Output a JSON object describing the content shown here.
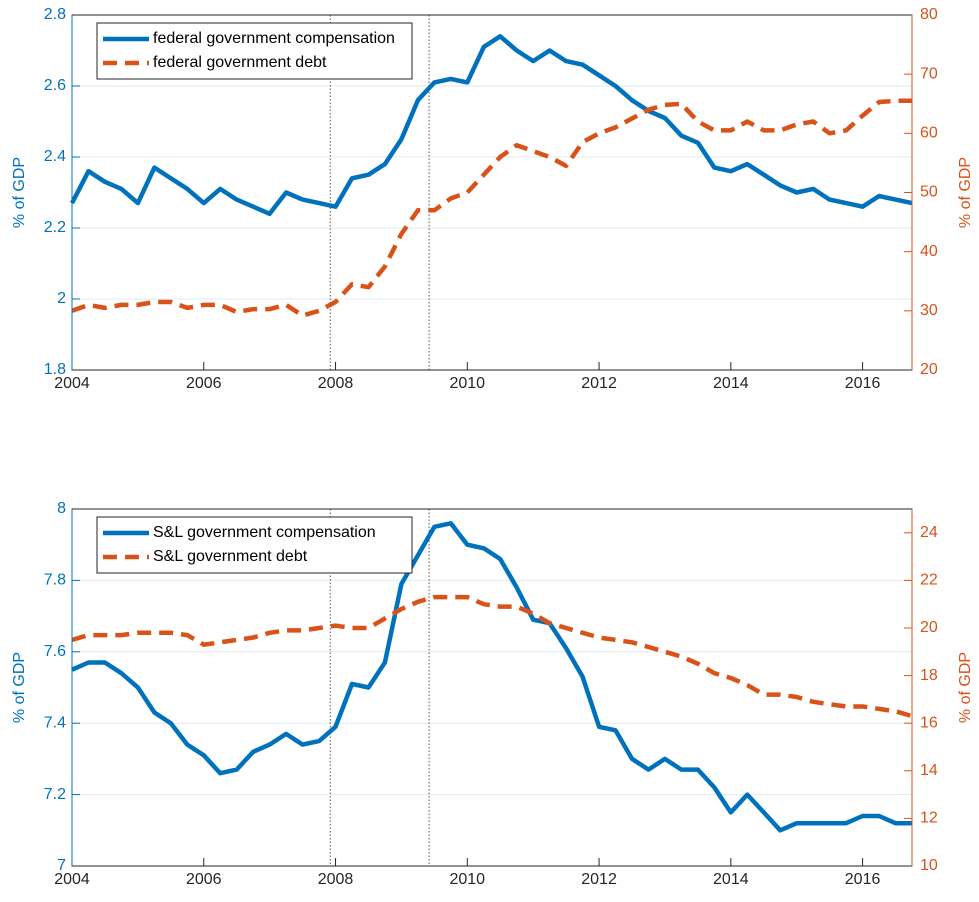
{
  "chart_data": [
    {
      "type": "line",
      "ylabel": "% of GDP",
      "y2label": "% of GDP",
      "x": [
        2004,
        2004.25,
        2004.5,
        2004.75,
        2005,
        2005.25,
        2005.5,
        2005.75,
        2006,
        2006.25,
        2006.5,
        2006.75,
        2007,
        2007.25,
        2007.5,
        2007.75,
        2008,
        2008.25,
        2008.5,
        2008.75,
        2009,
        2009.25,
        2009.5,
        2009.75,
        2010,
        2010.25,
        2010.5,
        2010.75,
        2011,
        2011.25,
        2011.5,
        2011.75,
        2012,
        2012.25,
        2012.5,
        2012.75,
        2013,
        2013.25,
        2013.5,
        2013.75,
        2014,
        2014.25,
        2014.5,
        2014.75,
        2015,
        2015.25,
        2015.5,
        2015.75,
        2016,
        2016.25,
        2016.5,
        2016.75
      ],
      "xlim": [
        2004,
        2016.75
      ],
      "xticks": [
        2004,
        2006,
        2008,
        2010,
        2012,
        2014,
        2016
      ],
      "ylim": [
        1.8,
        2.8
      ],
      "yticks": [
        1.8,
        2,
        2.2,
        2.4,
        2.6,
        2.8
      ],
      "y2lim": [
        20,
        80
      ],
      "y2ticks": [
        20,
        30,
        40,
        50,
        60,
        70,
        80
      ],
      "grid": true,
      "legend": "upper left",
      "vlines": [
        2007.92,
        2009.42
      ],
      "series": [
        {
          "name": "federal government compensation",
          "color": "#0072bd",
          "line_style": "solid",
          "values": [
            2.27,
            2.36,
            2.33,
            2.31,
            2.27,
            2.37,
            2.34,
            2.31,
            2.27,
            2.31,
            2.28,
            2.26,
            2.24,
            2.3,
            2.28,
            2.27,
            2.26,
            2.34,
            2.35,
            2.38,
            2.45,
            2.56,
            2.61,
            2.62,
            2.61,
            2.71,
            2.74,
            2.7,
            2.67,
            2.7,
            2.67,
            2.66,
            2.63,
            2.6,
            2.56,
            2.53,
            2.51,
            2.46,
            2.44,
            2.37,
            2.36,
            2.38,
            2.35,
            2.32,
            2.3,
            2.31,
            2.28,
            2.27,
            2.26,
            2.29,
            2.28,
            2.27
          ]
        },
        {
          "name": "federal government debt",
          "color": "#d95319",
          "line_style": "dashed",
          "axis": "y2",
          "values": [
            30,
            31,
            30.5,
            31,
            31,
            31.5,
            31.5,
            30.5,
            31,
            31,
            29.8,
            30.3,
            30.3,
            31,
            29.2,
            30,
            31.5,
            34.5,
            34,
            37.5,
            43,
            47,
            47,
            49,
            50,
            53,
            56,
            58,
            57,
            56,
            54.5,
            58.5,
            60,
            61,
            62.5,
            64,
            64.8,
            65,
            62,
            60.5,
            60.5,
            62,
            60.5,
            60.5,
            61.5,
            62,
            60,
            60.5,
            63,
            65.3,
            65.5,
            65.5
          ]
        }
      ]
    },
    {
      "type": "line",
      "ylabel": "% of GDP",
      "y2label": "% of GDP",
      "x": [
        2004,
        2004.25,
        2004.5,
        2004.75,
        2005,
        2005.25,
        2005.5,
        2005.75,
        2006,
        2006.25,
        2006.5,
        2006.75,
        2007,
        2007.25,
        2007.5,
        2007.75,
        2008,
        2008.25,
        2008.5,
        2008.75,
        2009,
        2009.25,
        2009.5,
        2009.75,
        2010,
        2010.25,
        2010.5,
        2010.75,
        2011,
        2011.25,
        2011.5,
        2011.75,
        2012,
        2012.25,
        2012.5,
        2012.75,
        2013,
        2013.25,
        2013.5,
        2013.75,
        2014,
        2014.25,
        2014.5,
        2014.75,
        2015,
        2015.25,
        2015.5,
        2015.75,
        2016,
        2016.25,
        2016.5,
        2016.75
      ],
      "xlim": [
        2004,
        2016.75
      ],
      "xticks": [
        2004,
        2006,
        2008,
        2010,
        2012,
        2014,
        2016
      ],
      "ylim": [
        7,
        8
      ],
      "yticks": [
        7,
        7.2,
        7.4,
        7.6,
        7.8,
        8
      ],
      "y2lim": [
        10,
        25
      ],
      "y2ticks": [
        10,
        12,
        14,
        16,
        18,
        20,
        22,
        24
      ],
      "grid": true,
      "legend": "upper left",
      "vlines": [
        2007.92,
        2009.42
      ],
      "series": [
        {
          "name": "S&L government compensation",
          "color": "#0072bd",
          "line_style": "solid",
          "values": [
            7.55,
            7.57,
            7.57,
            7.54,
            7.5,
            7.43,
            7.4,
            7.34,
            7.31,
            7.26,
            7.27,
            7.32,
            7.34,
            7.37,
            7.34,
            7.35,
            7.39,
            7.51,
            7.5,
            7.57,
            7.79,
            7.87,
            7.95,
            7.96,
            7.9,
            7.89,
            7.86,
            7.78,
            7.69,
            7.68,
            7.61,
            7.53,
            7.39,
            7.38,
            7.3,
            7.27,
            7.3,
            7.27,
            7.27,
            7.22,
            7.15,
            7.2,
            7.15,
            7.1,
            7.12,
            7.12,
            7.12,
            7.12,
            7.14,
            7.14,
            7.12,
            7.12
          ]
        },
        {
          "name": "S&L government debt",
          "color": "#d95319",
          "line_style": "dashed",
          "axis": "y2",
          "values": [
            19.5,
            19.7,
            19.7,
            19.7,
            19.8,
            19.8,
            19.8,
            19.7,
            19.3,
            19.4,
            19.5,
            19.6,
            19.8,
            19.9,
            19.9,
            20.0,
            20.1,
            20.0,
            20.0,
            20.4,
            20.8,
            21.1,
            21.3,
            21.3,
            21.3,
            21.0,
            20.9,
            20.9,
            20.6,
            20.2,
            20.0,
            19.8,
            19.6,
            19.5,
            19.4,
            19.2,
            19.0,
            18.8,
            18.5,
            18.1,
            17.9,
            17.6,
            17.2,
            17.2,
            17.1,
            16.9,
            16.8,
            16.7,
            16.7,
            16.6,
            16.5,
            16.3
          ]
        }
      ]
    }
  ]
}
